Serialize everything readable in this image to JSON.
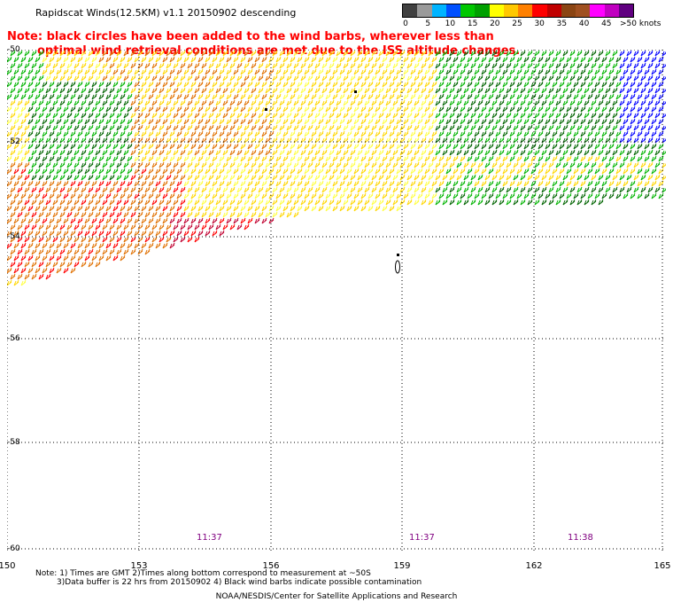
{
  "title": "Rapidscat Winds(12.5KM) v1.1 20150902 descending",
  "note": {
    "line1": "Note: black circles have been added to the wind barbs, wherever less than",
    "line2": "optimal wind retrieval conditions are met due to the ISS altitude changes."
  },
  "legend": {
    "labels": [
      "0",
      "5",
      "10",
      "15",
      "20",
      "25",
      "30",
      "35",
      "40",
      "45",
      ">50 knots"
    ],
    "colors": [
      "#404040",
      "#9a9a9a",
      "#00b4ff",
      "#0050ff",
      "#00c800",
      "#00a000",
      "#ffff00",
      "#ffc800",
      "#ff8000",
      "#ff0000",
      "#c00000",
      "#8b4513",
      "#a05020",
      "#ff00ff",
      "#c000c0",
      "#600080"
    ]
  },
  "lat_labels": [
    "-50",
    "-52",
    "-54",
    "-56",
    "-58",
    "-60"
  ],
  "lon_labels": [
    "150",
    "153",
    "156",
    "159",
    "162",
    "165"
  ],
  "times": [
    "11:37",
    "11:37",
    "11:38"
  ],
  "footnotes": {
    "line1": "Note: 1) Times are GMT 2)Times along bottom correspond to measurement at ~50S",
    "line2": "3)Data buffer is 22 hrs from 20150902 4) Black wind barbs indicate possible contamination"
  },
  "credit": "NOAA/NESDIS/Center for Satellite Applications and Research",
  "swath_colors": {
    "green": "#00b400",
    "darkgreen": "#006400",
    "yellow": "#ffd700",
    "lightyellow": "#ffff40",
    "orange": "#e07000",
    "red": "#ff0000",
    "darkred": "#c00030",
    "blue": "#0000ff"
  }
}
